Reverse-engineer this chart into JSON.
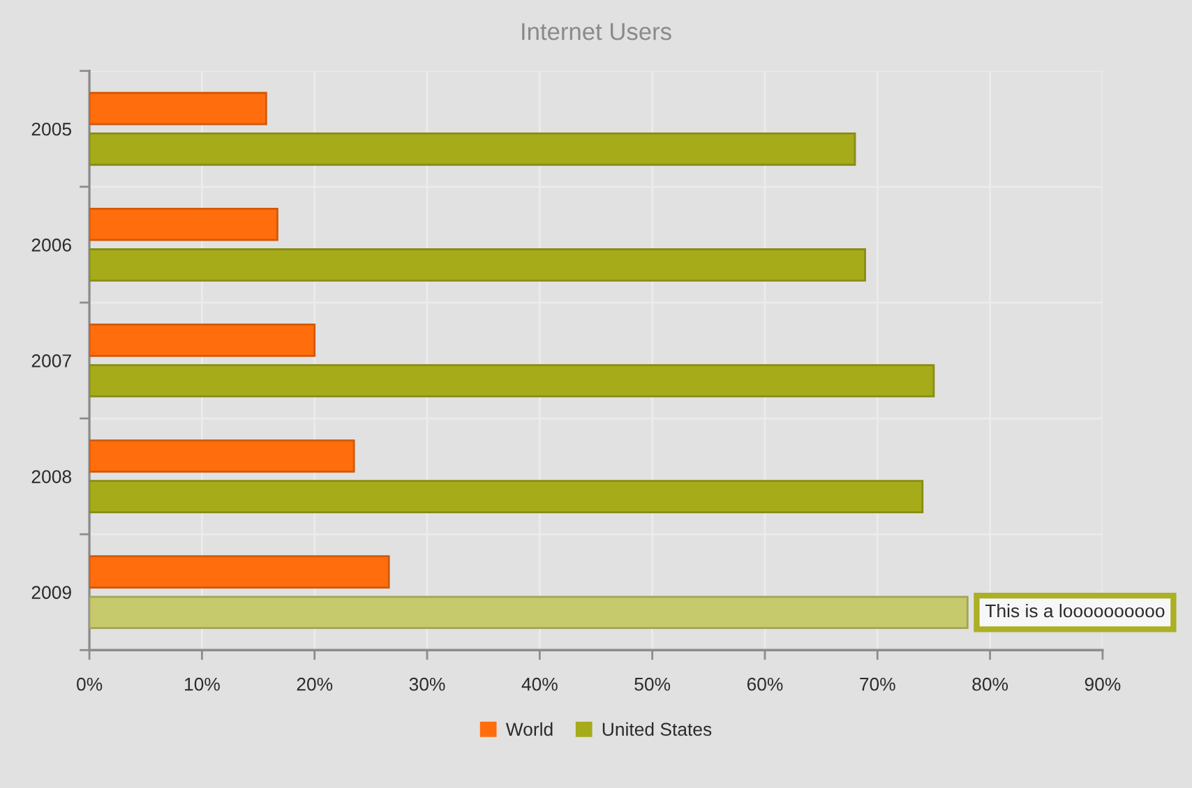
{
  "chart_data": {
    "type": "bar",
    "orientation": "horizontal",
    "title": "Internet Users",
    "categories": [
      "2005",
      "2006",
      "2007",
      "2008",
      "2009"
    ],
    "series": [
      {
        "name": "World",
        "color": "#ff6d0c",
        "values": [
          15.7,
          16.7,
          20,
          23.5,
          26.6
        ]
      },
      {
        "name": "United States",
        "color": "#a6ab1a",
        "colors": [
          "#a6ab1a",
          "#a6ab1a",
          "#a6ab1a",
          "#a6ab1a",
          "#c6c96c"
        ],
        "values": [
          68,
          68.9,
          75,
          74,
          78
        ]
      }
    ],
    "xlim": [
      0,
      90
    ],
    "xticks": [
      {
        "value": 0,
        "label": "0%"
      },
      {
        "value": 10,
        "label": "10%"
      },
      {
        "value": 20,
        "label": "20%"
      },
      {
        "value": 30,
        "label": "30%"
      },
      {
        "value": 40,
        "label": "40%"
      },
      {
        "value": 50,
        "label": "50%"
      },
      {
        "value": 60,
        "label": "60%"
      },
      {
        "value": 70,
        "label": "70%"
      },
      {
        "value": 80,
        "label": "80%"
      },
      {
        "value": 90,
        "label": "90%"
      }
    ],
    "grid": true,
    "legend": "bottom",
    "annotations": [
      {
        "text": "This is a loooooooooo",
        "x": 78,
        "y": "2009"
      }
    ]
  }
}
